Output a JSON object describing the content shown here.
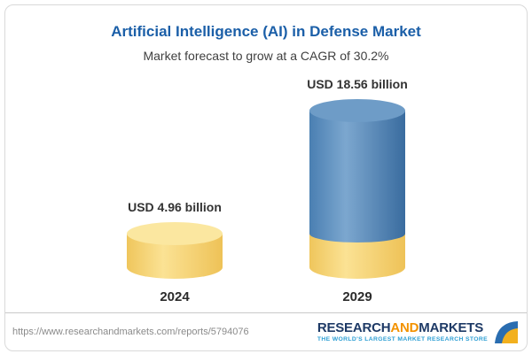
{
  "card": {
    "title": "Artificial Intelligence (AI) in Defense Market",
    "subtitle": "Market forecast to grow at a CAGR of 30.2%"
  },
  "chart_data": {
    "type": "bar",
    "style": "3d-cylinder",
    "categories": [
      "2024",
      "2029"
    ],
    "values": [
      4.96,
      18.56
    ],
    "value_labels": [
      "USD 4.96 billion",
      "USD 18.56 billion"
    ],
    "unit": "USD billion",
    "cagr_pct": 30.2,
    "title": "Artificial Intelligence (AI) in Defense Market",
    "subtitle": "Market forecast to grow at a CAGR of 30.2%",
    "xlabel": "",
    "ylabel": "",
    "legend": "none",
    "grid": false,
    "bar_colors": [
      "#f6d26e",
      "#4d80b3"
    ],
    "bar_2029_base_segment_color": "#f6d26e"
  },
  "bars": [
    {
      "label": "USD 4.96 billion",
      "year": "2024"
    },
    {
      "label": "USD 18.56 billion",
      "year": "2029"
    }
  ],
  "footer": {
    "url": "https://www.researchandmarkets.com/reports/5794076",
    "brand": {
      "part1": "RESEARCH",
      "part2": "AND",
      "part3": "MARKETS",
      "tagline": "THE WORLD'S LARGEST MARKET RESEARCH STORE"
    }
  },
  "colors": {
    "title_blue": "#1b5fa8",
    "bar_yellow": "#f6d26e",
    "bar_blue": "#4d80b3",
    "brand_navy": "#1e3a66",
    "brand_orange": "#f39200",
    "tagline_blue": "#2e9fd4"
  }
}
